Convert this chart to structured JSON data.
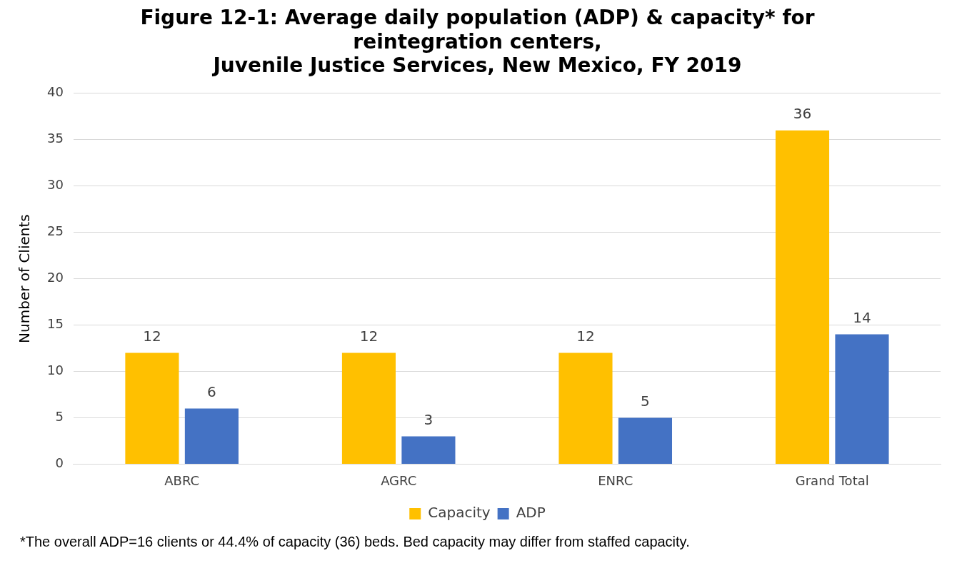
{
  "chart_data": {
    "type": "bar",
    "title": "Figure 12-1: Average daily population (ADP) & capacity* for\nreintegration centers,\nJuvenile Justice Services, New Mexico, FY 2019",
    "ylabel": "Number of Clients",
    "categories": [
      "ABRC",
      "AGRC",
      "ENRC",
      "Grand Total"
    ],
    "series": [
      {
        "name": "Capacity",
        "color": "#ffc000",
        "values": [
          12,
          12,
          12,
          36
        ]
      },
      {
        "name": "ADP",
        "color": "#4472c4",
        "values": [
          6,
          3,
          5,
          14
        ]
      }
    ],
    "ylim": [
      0,
      40
    ],
    "yticks": [
      0,
      5,
      10,
      15,
      20,
      25,
      30,
      35,
      40
    ],
    "grid": "y",
    "legend": "bottom",
    "data_labels": true,
    "annotations": [
      "*The overall ADP=16 clients or 44.4% of capacity (36) beds.  Bed capacity may differ from staffed capacity."
    ]
  }
}
